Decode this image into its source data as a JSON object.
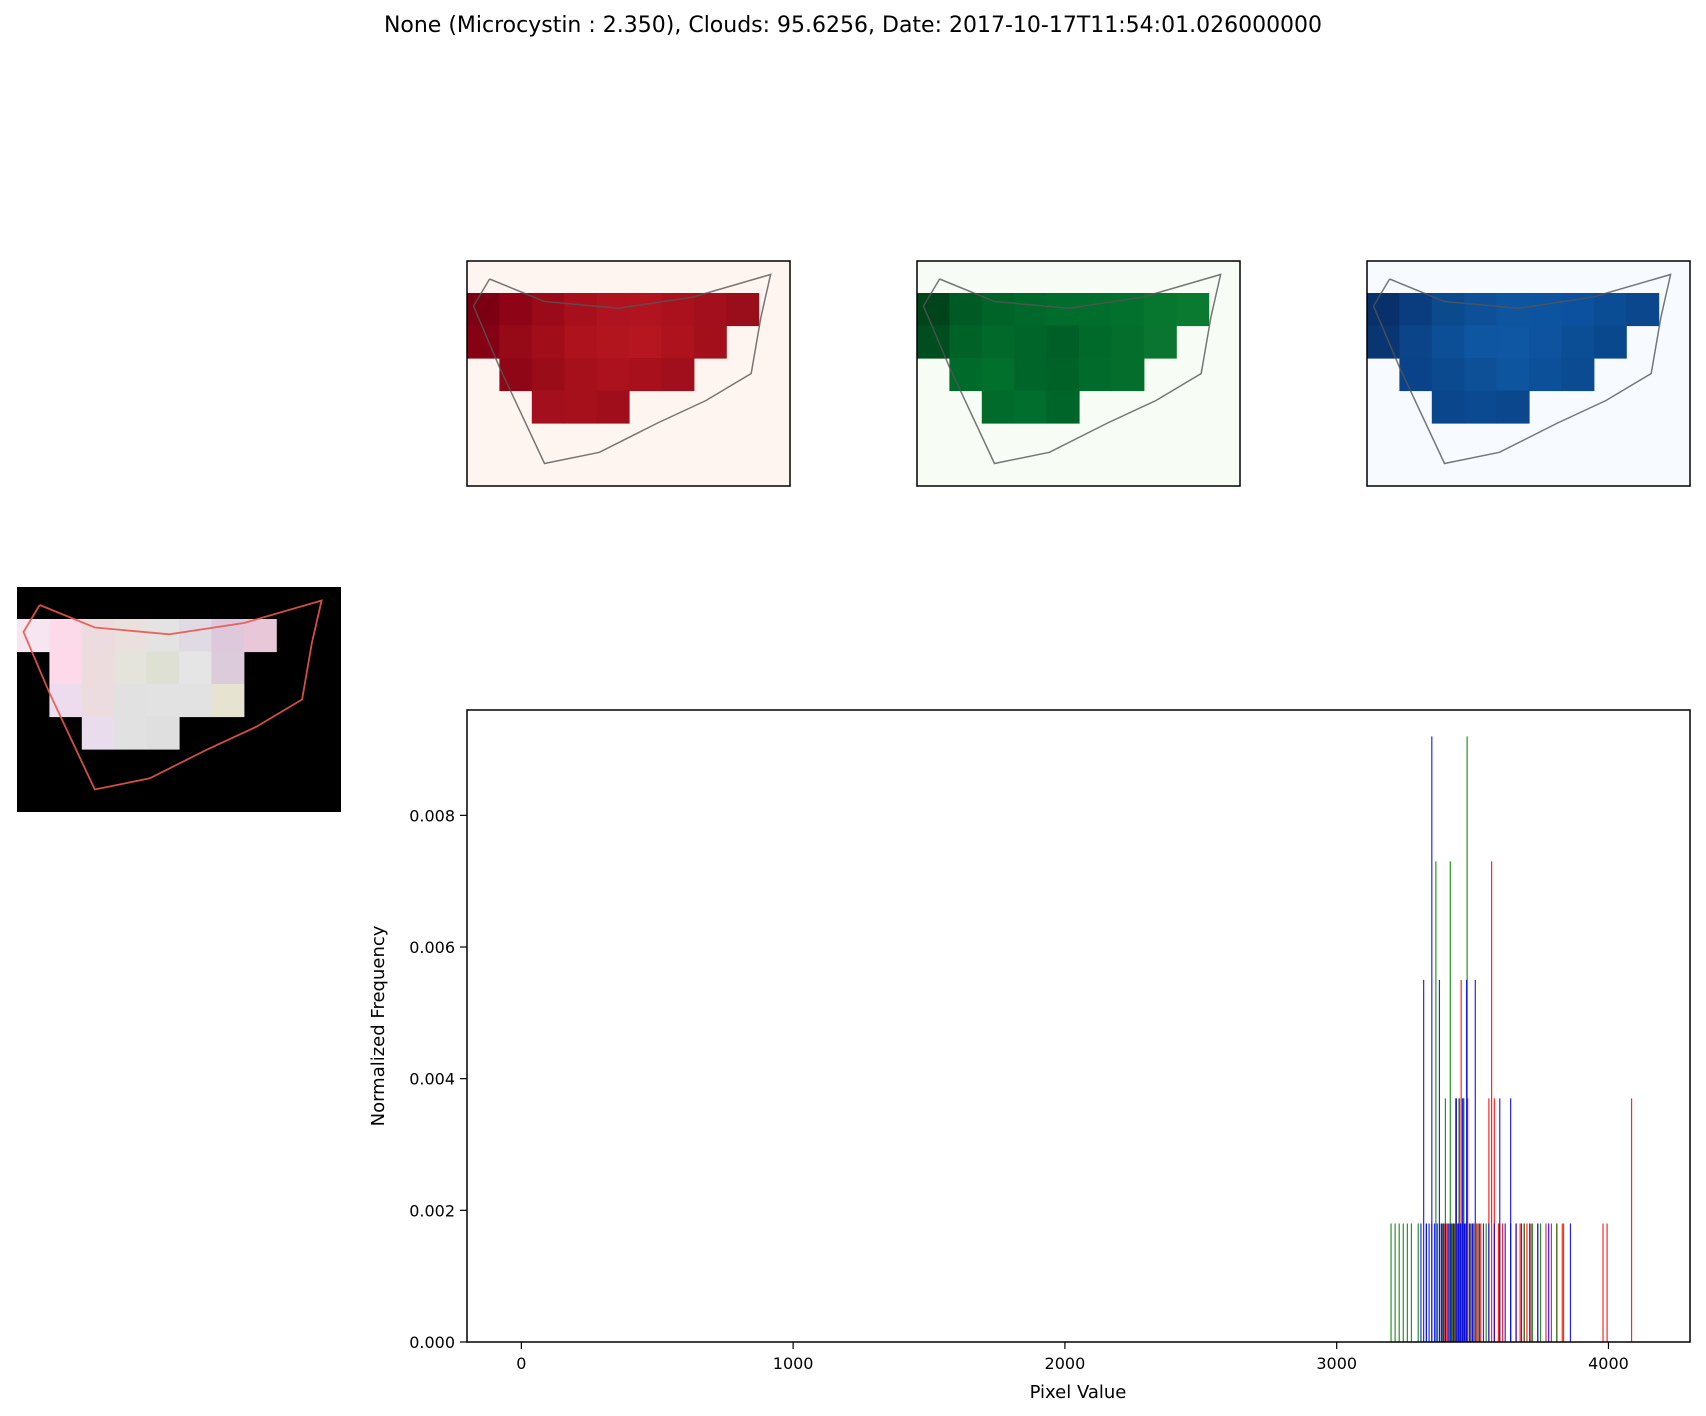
{
  "figure": {
    "title": "None (Microcystin : 2.350), Clouds: 95.6256, Date: 2017-10-17T11:54:01.026000000"
  },
  "panels": {
    "red_band": {
      "cmap": "Reds",
      "background": "#fff5f0",
      "outline_color": "#555555"
    },
    "green_band": {
      "cmap": "Greens",
      "background": "#f7fcf5",
      "outline_color": "#555555"
    },
    "blue_band": {
      "cmap": "Blues",
      "background": "#f7fbff",
      "outline_color": "#555555"
    },
    "rgb_composite": {
      "background": "#000000",
      "outline_color": "#e8584f"
    }
  },
  "chart_data": {
    "type": "bar",
    "title": "",
    "xlabel": "Pixel Value",
    "ylabel": "Normalized Frequency",
    "xlim": [
      -200,
      4300
    ],
    "ylim": [
      0,
      0.0096
    ],
    "xticks": [
      "0",
      "1000",
      "2000",
      "3000",
      "4000"
    ],
    "xtick_values": [
      0,
      1000,
      2000,
      3000,
      4000
    ],
    "yticks": [
      "0.000",
      "0.002",
      "0.004",
      "0.006",
      "0.008"
    ],
    "ytick_values": [
      0,
      0.002,
      0.004,
      0.006,
      0.008
    ],
    "grid": false,
    "series": [
      {
        "color": "#ff0000",
        "x": [
          3385,
          3395,
          3405,
          3415,
          3422,
          3428,
          3435,
          3440,
          3446,
          3452,
          3458,
          3462,
          3466,
          3470,
          3476,
          3482,
          3490,
          3500,
          3515,
          3530,
          3560,
          3570,
          3580,
          3595,
          3610,
          3640,
          3660,
          3675,
          3690,
          3700,
          3715,
          3740,
          3770,
          3790,
          3810,
          3830,
          3980,
          3995,
          4085
        ],
        "values": [
          0.0018,
          0.0018,
          0.0018,
          0.0018,
          0.0018,
          0.0018,
          0.0018,
          0.0037,
          0.0018,
          0.0037,
          0.0055,
          0.0018,
          0.0037,
          0.0018,
          0.0018,
          0.0037,
          0.0018,
          0.0018,
          0.0018,
          0.0018,
          0.0037,
          0.0073,
          0.0037,
          0.0018,
          0.0018,
          0.0018,
          0.0018,
          0.0018,
          0.0018,
          0.0018,
          0.0018,
          0.0018,
          0.0018,
          0.0018,
          0.0018,
          0.0018,
          0.0018,
          0.0018,
          0.0037
        ]
      },
      {
        "color": "#008000",
        "x": [
          3200,
          3215,
          3230,
          3245,
          3260,
          3275,
          3300,
          3330,
          3350,
          3365,
          3378,
          3390,
          3400,
          3410,
          3418,
          3425,
          3432,
          3438,
          3444,
          3450,
          3456,
          3462,
          3468,
          3474,
          3480,
          3488,
          3495,
          3505,
          3520,
          3550,
          3600,
          3640,
          3690,
          3720,
          3750,
          3810,
          3835
        ],
        "values": [
          0.0018,
          0.0018,
          0.0018,
          0.0018,
          0.0018,
          0.0018,
          0.0018,
          0.0018,
          0.0018,
          0.0073,
          0.0018,
          0.0018,
          0.0037,
          0.0018,
          0.0073,
          0.0018,
          0.0018,
          0.0037,
          0.0018,
          0.0037,
          0.0018,
          0.0018,
          0.0037,
          0.0018,
          0.0092,
          0.0018,
          0.0018,
          0.0018,
          0.0018,
          0.0018,
          0.0018,
          0.0018,
          0.0018,
          0.0018,
          0.0018,
          0.0018,
          0.0018
        ]
      },
      {
        "color": "#0000ff",
        "x": [
          3310,
          3320,
          3330,
          3340,
          3350,
          3360,
          3370,
          3378,
          3385,
          3392,
          3400,
          3410,
          3420,
          3430,
          3440,
          3448,
          3455,
          3463,
          3470,
          3478,
          3490,
          3500,
          3510,
          3525,
          3540,
          3560,
          3580,
          3600,
          3620,
          3640,
          3660,
          3680,
          3710,
          3740,
          3780,
          3860
        ],
        "values": [
          0.0018,
          0.0055,
          0.0018,
          0.0018,
          0.0092,
          0.0018,
          0.0018,
          0.0055,
          0.0018,
          0.0018,
          0.0018,
          0.0018,
          0.0018,
          0.0018,
          0.0037,
          0.0018,
          0.0018,
          0.0037,
          0.0018,
          0.0055,
          0.0018,
          0.0018,
          0.0055,
          0.0018,
          0.0018,
          0.0018,
          0.0018,
          0.0037,
          0.0018,
          0.0037,
          0.0018,
          0.0018,
          0.0018,
          0.0018,
          0.0018,
          0.0018
        ]
      }
    ]
  }
}
